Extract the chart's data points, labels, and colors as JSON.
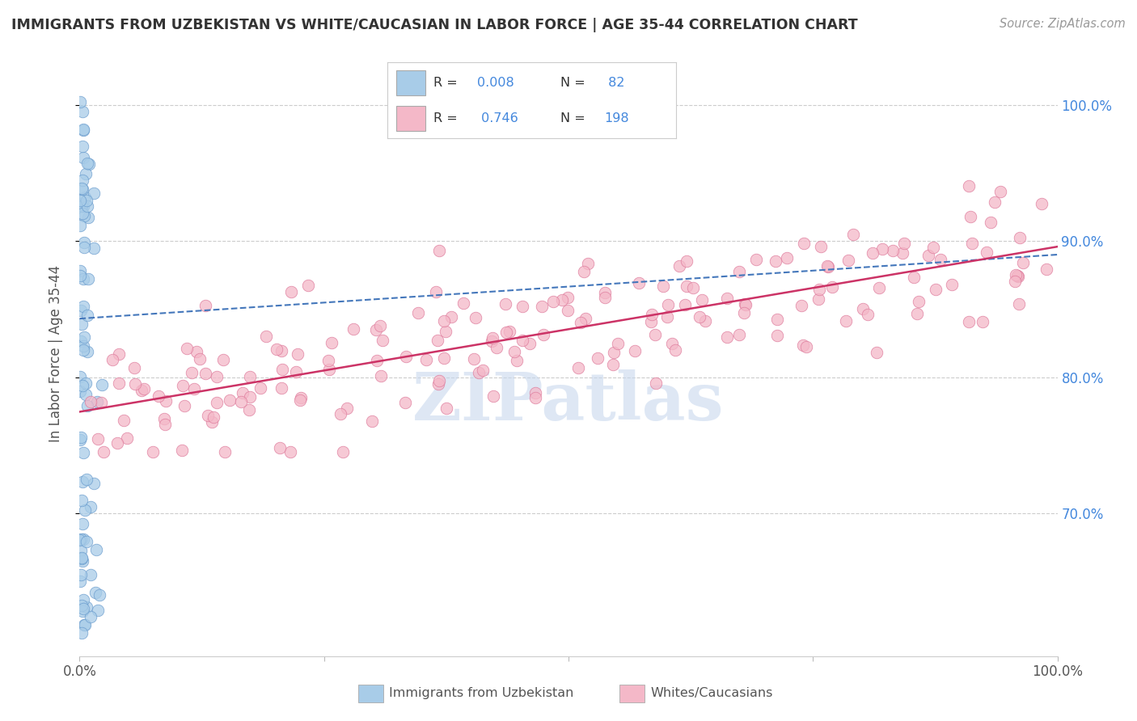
{
  "title": "IMMIGRANTS FROM UZBEKISTAN VS WHITE/CAUCASIAN IN LABOR FORCE | AGE 35-44 CORRELATION CHART",
  "source": "Source: ZipAtlas.com",
  "ylabel": "In Labor Force | Age 35-44",
  "legend_label1": "Immigrants from Uzbekistan",
  "legend_label2": "Whites/Caucasians",
  "R1": "0.008",
  "N1": 82,
  "R2": "0.746",
  "N2": 198,
  "blue_color": "#a8cce8",
  "blue_edge_color": "#6699cc",
  "pink_color": "#f4b8c8",
  "pink_edge_color": "#dd7799",
  "blue_line_color": "#4477bb",
  "pink_line_color": "#cc3366",
  "title_color": "#333333",
  "right_tick_color": "#4488dd",
  "legend_text_color": "#4488dd",
  "legend_label_color": "#333333",
  "watermark": "ZIPatlas",
  "watermark_color": "#c8d8ee",
  "background_color": "#ffffff",
  "grid_color": "#cccccc",
  "xlim": [
    0.0,
    1.0
  ],
  "ylim": [
    0.595,
    1.04
  ],
  "yticks": [
    0.7,
    0.8,
    0.9,
    1.0
  ],
  "ytick_labels": [
    "70.0%",
    "80.0%",
    "90.0%",
    "100.0%"
  ]
}
